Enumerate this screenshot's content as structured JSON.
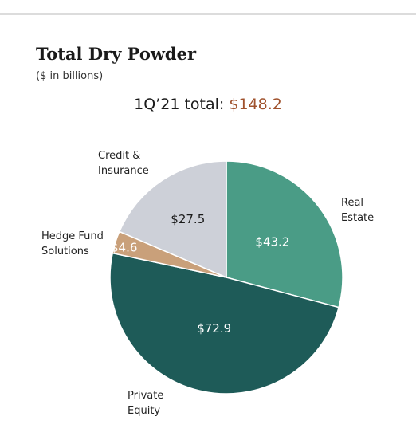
{
  "header": {
    "title": "Total Dry Powder",
    "subtitle": "($ in billions)",
    "total_label": "1Q’21 total:",
    "total_value": "$148.2"
  },
  "colors": {
    "real_estate": "#4a9c86",
    "private_equity": "#1e5b58",
    "hedge_fund": "#c9a07a",
    "credit": "#cdd0d8",
    "accent": "#a0522d"
  },
  "chart_data": {
    "type": "pie",
    "title": "Total Dry Powder",
    "subtitle": "($ in billions)",
    "slices": [
      {
        "name": "Real Estate",
        "label_lines": [
          "Real",
          "Estate"
        ],
        "value": 43.2,
        "value_label": "$43.2",
        "color": "#4a9c86",
        "text_color": "#ffffff"
      },
      {
        "name": "Private Equity",
        "label_lines": [
          "Private",
          "Equity"
        ],
        "value": 72.9,
        "value_label": "$72.9",
        "color": "#1e5b58",
        "text_color": "#ffffff"
      },
      {
        "name": "Hedge Fund Solutions",
        "label_lines": [
          "Hedge Fund",
          "Solutions"
        ],
        "value": 4.6,
        "value_label": "$4.6",
        "color": "#c9a07a",
        "text_color": "#ffffff"
      },
      {
        "name": "Credit & Insurance",
        "label_lines": [
          "Credit &",
          "Insurance"
        ],
        "value": 27.5,
        "value_label": "$27.5",
        "color": "#cdd0d8",
        "text_color": "#1a1a1a"
      }
    ],
    "total": 148.2
  }
}
